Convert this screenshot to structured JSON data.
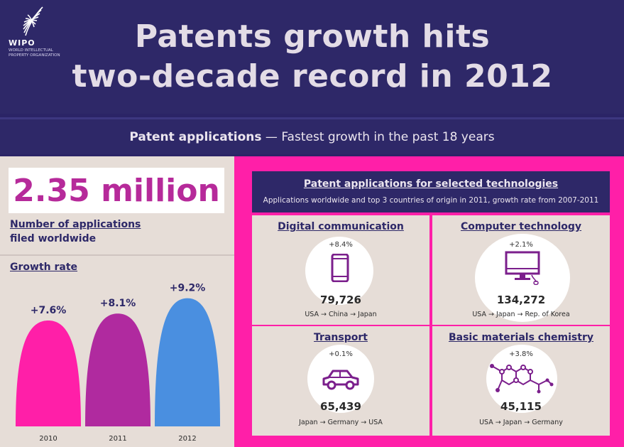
{
  "header": {
    "logo_text": "WIPO",
    "logo_subtext": "WORLD INTELLECTUAL PROPERTY ORGANIZATION",
    "title_line1": "Patents growth hits",
    "title_line2": "two-decade record in 2012"
  },
  "subtitle": {
    "bold": "Patent applications",
    "rest": " — Fastest growth in the past 18 years"
  },
  "summary": {
    "total": "2.35 million",
    "label_line1": "Number of applications",
    "label_line2": "filed worldwide",
    "growth_title": "Growth rate"
  },
  "chart_data": {
    "type": "bar",
    "title": "Growth rate",
    "categories": [
      "2010",
      "2011",
      "2012"
    ],
    "values": [
      7.6,
      8.1,
      9.2
    ],
    "data_labels": [
      "+7.6%",
      "+8.1%",
      "+9.2%"
    ],
    "bar_colors": [
      "#ff1fa8",
      "#b02a9f",
      "#4a8fe0"
    ],
    "ylim": [
      0,
      10
    ]
  },
  "technologies": {
    "title": "Patent applications for selected technologies",
    "subtitle": "Applications worldwide and top 3 countries of origin in 2011, growth rate from 2007-2011",
    "items": [
      {
        "name": "Digital communication",
        "rate": "+8.4%",
        "value": "79,726",
        "countries": "USA → China → Japan",
        "icon": "smartphone-icon"
      },
      {
        "name": "Computer technology",
        "rate": "+2.1%",
        "value": "134,272",
        "countries": "USA → Japan → Rep. of Korea",
        "icon": "computer-monitor-icon"
      },
      {
        "name": "Transport",
        "rate": "+0.1%",
        "value": "65,439",
        "countries": "Japan → Germany → USA",
        "icon": "car-icon"
      },
      {
        "name": "Basic materials chemistry",
        "rate": "+3.8%",
        "value": "45,115",
        "countries": "USA → Japan → Germany",
        "icon": "molecule-icon"
      }
    ]
  },
  "colors": {
    "navy": "#2e2868",
    "magenta": "#ff1fa8",
    "purple": "#b62a9a",
    "icon_purple": "#7b1f8c",
    "beige": "#e6ddd7"
  }
}
